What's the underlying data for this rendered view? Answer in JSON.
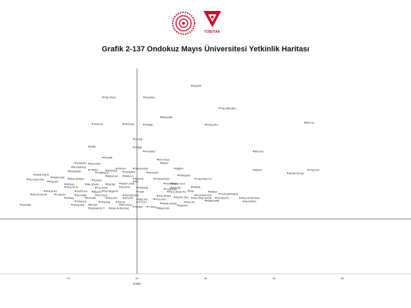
{
  "header": {
    "title": "Grafik 2-137 Ondokuz Mayıs Üniversitesi Yetkinlik Haritası",
    "logo_left": "ministry-emblem",
    "logo_right_text": "TÜBİTAK",
    "brand_color": "#c8102e"
  },
  "chart_data": {
    "type": "scatter",
    "title": "Grafik 2-137 Ondokuz Mayıs Üniversitesi Yetkinlik Haritası",
    "xlabel": "Kalite",
    "ylabel": "",
    "xlim": [
      0,
      60
    ],
    "ylim": [
      -0.8,
      2.2
    ],
    "x_ticks": [
      10,
      20,
      30,
      40,
      50
    ],
    "reference_lines": {
      "x": 20,
      "y": 0
    },
    "grid": false,
    "point_color": "#1a237e",
    "points": [
      {
        "label": "Dişçilik",
        "x": 28.0,
        "y": 1.95
      },
      {
        "label": "Fab.Otom.",
        "x": 15.0,
        "y": 1.78
      },
      {
        "label": "Hay.Bes.",
        "x": 21.0,
        "y": 1.78
      },
      {
        "label": "Top.&Bit.Bes.",
        "x": 32.0,
        "y": 1.62
      },
      {
        "label": "BahçeBi",
        "x": 23.5,
        "y": 1.49
      },
      {
        "label": "Bit.Kor.",
        "x": 44.5,
        "y": 1.41
      },
      {
        "label": "SüDrün.",
        "x": 13.5,
        "y": 1.39
      },
      {
        "label": "Histoloji",
        "x": 18.0,
        "y": 1.39
      },
      {
        "label": "TarlaB.",
        "x": 21.0,
        "y": 1.38
      },
      {
        "label": "İnorg.Kim.",
        "x": 30.0,
        "y": 1.38
      },
      {
        "label": "Üroloji",
        "x": 19.5,
        "y": 1.17
      },
      {
        "label": "KBB",
        "x": 13.0,
        "y": 1.06
      },
      {
        "label": "Ödalji",
        "x": 19.5,
        "y": 1.05
      },
      {
        "label": "Hematol.",
        "x": 21.0,
        "y": 0.99
      },
      {
        "label": "Bit.Güv.",
        "x": 37.0,
        "y": 0.99
      },
      {
        "label": "Pedatri",
        "x": 15.0,
        "y": 0.9
      },
      {
        "label": "Ent.Hasz.",
        "x": 23.0,
        "y": 0.87
      },
      {
        "label": "GdaGüv.",
        "x": 11.0,
        "y": 0.82
      },
      {
        "label": "Endokrin",
        "x": 13.0,
        "y": 0.81
      },
      {
        "label": "Bulut",
        "x": 23.5,
        "y": 0.82
      },
      {
        "label": "Romatoloji",
        "x": 10.5,
        "y": 0.76
      },
      {
        "label": "Orman",
        "x": 17.0,
        "y": 0.74
      },
      {
        "label": "İmmünoloji",
        "x": 19.5,
        "y": 0.74
      },
      {
        "label": "Eğitim",
        "x": 25.5,
        "y": 0.74
      },
      {
        "label": "Biyom.",
        "x": 37.0,
        "y": 0.72
      },
      {
        "label": "Org.Kim.",
        "x": 45.0,
        "y": 0.72
      },
      {
        "label": "Oftalm.",
        "x": 13.0,
        "y": 0.72
      },
      {
        "label": "Nefroloji",
        "x": 15.5,
        "y": 0.71
      },
      {
        "label": "Radyoloji",
        "x": 10.0,
        "y": 0.7
      },
      {
        "label": "GdaBiyot.",
        "x": 14.0,
        "y": 0.68
      },
      {
        "label": "Obstetrik",
        "x": 18.0,
        "y": 0.69
      },
      {
        "label": "AnemaT.",
        "x": 21.5,
        "y": 0.68
      },
      {
        "label": "Analit.Kimya",
        "x": 42.0,
        "y": 0.67
      },
      {
        "label": "Acil&Yoğ.B.",
        "x": 5.0,
        "y": 0.65
      },
      {
        "label": "Biyomed",
        "x": 15.5,
        "y": 0.63
      },
      {
        "label": "Meteor.",
        "x": 18.0,
        "y": 0.63
      },
      {
        "label": "Polisyatri",
        "x": 26.0,
        "y": 0.64
      },
      {
        "label": "Elektronik",
        "x": 7.5,
        "y": 0.61
      },
      {
        "label": "Besl.&Diyet.",
        "x": 10.0,
        "y": 0.59
      },
      {
        "label": "Gel.İmal.Tek.",
        "x": 4.0,
        "y": 0.58
      },
      {
        "label": "İçHast.",
        "x": 13.5,
        "y": 0.57
      },
      {
        "label": "Sinirbil.",
        "x": 19.5,
        "y": 0.59
      },
      {
        "label": "Fizikokimya",
        "x": 22.5,
        "y": 0.59
      },
      {
        "label": "Yoğ.Mad.Fiz.",
        "x": 28.5,
        "y": 0.59
      },
      {
        "label": "Ray.Sis.",
        "x": 7.0,
        "y": 0.55
      },
      {
        "label": "Alz.",
        "x": 19.5,
        "y": 0.55
      },
      {
        "label": "Mimari",
        "x": 9.5,
        "y": 0.51
      },
      {
        "label": "Akı.&Sulu",
        "x": 12.5,
        "y": 0.51
      },
      {
        "label": "Kardiy.",
        "x": 15.5,
        "y": 0.51
      },
      {
        "label": "Eklem.İmal.",
        "x": 17.5,
        "y": 0.52
      },
      {
        "label": "Dok&Deb.",
        "x": 24.0,
        "y": 0.52
      },
      {
        "label": "Biyok.Gen.",
        "x": 25.0,
        "y": 0.52
      },
      {
        "label": "Ulaş.&Loj.",
        "x": 9.5,
        "y": 0.47
      },
      {
        "label": "Tıp.Tarih",
        "x": 14.0,
        "y": 0.46
      },
      {
        "label": "Dermat.",
        "x": 17.5,
        "y": 0.47
      },
      {
        "label": "Psikoloji",
        "x": 20.0,
        "y": 0.46
      },
      {
        "label": "Polotip",
        "x": 25.0,
        "y": 0.46
      },
      {
        "label": "Katalz.",
        "x": 28.0,
        "y": 0.47
      },
      {
        "label": "Coğrafya",
        "x": 24.0,
        "y": 0.44
      },
      {
        "label": "Nük.Ener.",
        "x": 6.5,
        "y": 0.41
      },
      {
        "label": "Gastroen.",
        "x": 11.0,
        "y": 0.41
      },
      {
        "label": "Biyoist.",
        "x": 13.5,
        "y": 0.4
      },
      {
        "label": "Kemikgeme",
        "x": 15.0,
        "y": 0.41
      },
      {
        "label": "Tarih",
        "x": 20.0,
        "y": 0.4
      },
      {
        "label": "Parç.Akışk.Fiz.",
        "x": 24.5,
        "y": 0.4
      },
      {
        "label": "Etik",
        "x": 27.5,
        "y": 0.41
      },
      {
        "label": "Mikrel.",
        "x": 30.5,
        "y": 0.4
      },
      {
        "label": "Hid.&Yak.Pil.",
        "x": 4.5,
        "y": 0.36
      },
      {
        "label": "G.Bank.",
        "x": 8.0,
        "y": 0.36
      },
      {
        "label": "DenizBil.",
        "x": 11.0,
        "y": 0.35
      },
      {
        "label": "Kit.Drips.",
        "x": 14.0,
        "y": 0.35
      },
      {
        "label": "Sist.&Komp.",
        "x": 18.0,
        "y": 0.35
      },
      {
        "label": "Pol.&Plan.",
        "x": 23.0,
        "y": 0.34
      },
      {
        "label": "KuantumTek.",
        "x": 28.5,
        "y": 0.35
      },
      {
        "label": "Yüzey&Arayüz",
        "x": 32.0,
        "y": 0.37
      },
      {
        "label": "Güneş",
        "x": 9.5,
        "y": 0.31
      },
      {
        "label": "Robotik",
        "x": 12.5,
        "y": 0.31
      },
      {
        "label": "Akış.Din.",
        "x": 15.5,
        "y": 0.31
      },
      {
        "label": "Anesth.",
        "x": 18.0,
        "y": 0.31
      },
      {
        "label": "Modül.Sim.",
        "x": 25.5,
        "y": 0.32
      },
      {
        "label": "Nüz.Klap.&Film",
        "x": 28.0,
        "y": 0.31
      },
      {
        "label": "Deney.Fiz.",
        "x": 31.5,
        "y": 0.31
      },
      {
        "label": "Akış.Gürül.Mak.",
        "x": 35.0,
        "y": 0.31
      },
      {
        "label": "Bağ.Vol.",
        "x": 20.0,
        "y": 0.29
      },
      {
        "label": "Pros.Kim.",
        "x": 22.5,
        "y": 0.29
      },
      {
        "label": "Matematik",
        "x": 30.0,
        "y": 0.27
      },
      {
        "label": "AtomikFiz.",
        "x": 35.5,
        "y": 0.26
      },
      {
        "label": "Ortoped.",
        "x": 11.0,
        "y": 0.26
      },
      {
        "label": "Onkoloji",
        "x": 14.5,
        "y": 0.25
      },
      {
        "label": "Sanat",
        "x": 17.0,
        "y": 0.25
      },
      {
        "label": "Ön.Ver.",
        "x": 20.0,
        "y": 0.25
      },
      {
        "label": "Nes.İnt.",
        "x": 27.0,
        "y": 0.25
      },
      {
        "label": "Genetik",
        "x": 3.0,
        "y": 0.21
      },
      {
        "label": "Sosyoloji",
        "x": 10.5,
        "y": 0.21
      },
      {
        "label": "B.Veri",
        "x": 13.0,
        "y": 0.21
      },
      {
        "label": "Ekl.Dona.",
        "x": 17.5,
        "y": 0.21
      },
      {
        "label": "Metal.&Alaş.",
        "x": 23.5,
        "y": 0.23
      },
      {
        "label": "İşletme",
        "x": 26.0,
        "y": 0.2
      },
      {
        "label": "YeriBil.",
        "x": 19.5,
        "y": 0.18
      },
      {
        "label": "Y.Zeka",
        "x": 21.5,
        "y": 0.18
      },
      {
        "label": "Biyomüh.",
        "x": 23.0,
        "y": 0.16
      },
      {
        "label": "Uydu&Fel.T.",
        "x": 13.0,
        "y": 0.16
      },
      {
        "label": "Elek.&Hib.Araç",
        "x": 16.0,
        "y": 0.16
      }
    ]
  }
}
